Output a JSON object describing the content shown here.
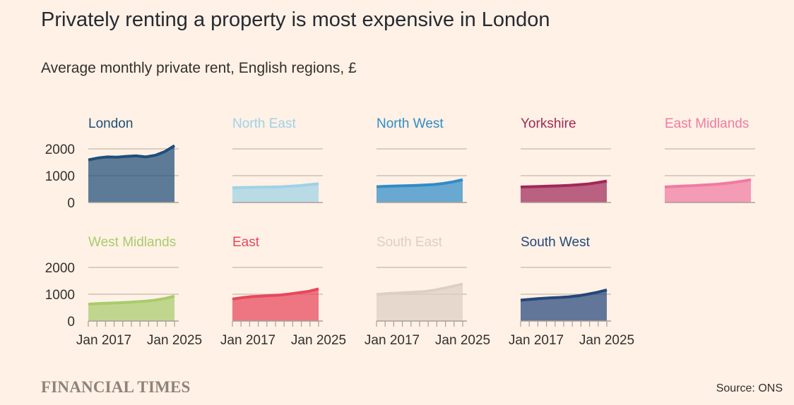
{
  "title": "Privately renting a property is most expensive in London",
  "subtitle": "Average monthly private rent, English regions, £",
  "source": "Source: ONS",
  "publisher_logo": "FINANCIAL TIMES",
  "chart_data": {
    "type": "area",
    "layout": "small-multiples",
    "x_tick_labels": [
      "Jan 2017",
      "Jan 2025"
    ],
    "y_ticks": [
      0,
      1000,
      2000
    ],
    "ylim": [
      0,
      2000
    ],
    "grid": true,
    "x": [
      "2016",
      "2017",
      "2018",
      "2019",
      "2020",
      "2021",
      "2022",
      "2023",
      "2024",
      "2025"
    ],
    "series": [
      {
        "name": "London",
        "color": "#1f4e79",
        "values": [
          1590,
          1660,
          1700,
          1690,
          1720,
          1740,
          1700,
          1760,
          1900,
          2120
        ]
      },
      {
        "name": "North East",
        "color": "#9ed2e6",
        "values": [
          550,
          560,
          565,
          570,
          575,
          585,
          605,
          630,
          665,
          700
        ]
      },
      {
        "name": "North West",
        "color": "#2f8cc8",
        "values": [
          590,
          605,
          615,
          625,
          635,
          650,
          670,
          710,
          770,
          850
        ]
      },
      {
        "name": "Yorkshire",
        "color": "#a0285a",
        "values": [
          580,
          590,
          600,
          610,
          620,
          640,
          660,
          690,
          740,
          800
        ]
      },
      {
        "name": "East Midlands",
        "color": "#f07aa3",
        "values": [
          580,
          600,
          615,
          630,
          650,
          670,
          700,
          740,
          790,
          850
        ]
      },
      {
        "name": "West Midlands",
        "color": "#a8cc6c",
        "values": [
          630,
          650,
          665,
          680,
          695,
          715,
          740,
          780,
          840,
          930
        ]
      },
      {
        "name": "East",
        "color": "#e8475c",
        "values": [
          820,
          870,
          910,
          930,
          950,
          970,
          1010,
          1060,
          1110,
          1200
        ]
      },
      {
        "name": "South East",
        "color": "#dccfc4",
        "values": [
          990,
          1020,
          1040,
          1060,
          1080,
          1100,
          1150,
          1220,
          1300,
          1380
        ]
      },
      {
        "name": "South West",
        "color": "#24477a",
        "values": [
          780,
          810,
          840,
          860,
          880,
          900,
          940,
          1000,
          1070,
          1160
        ]
      }
    ]
  }
}
